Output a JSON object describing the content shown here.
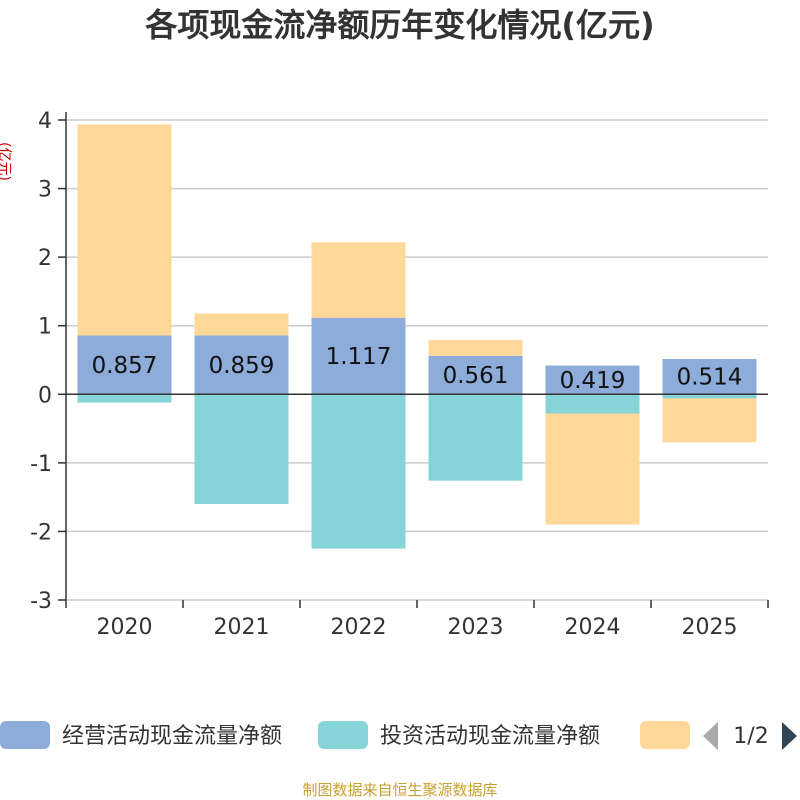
{
  "chart_data": {
    "type": "bar",
    "stacked": true,
    "title": "各项现金流净额历年变化情况(亿元)",
    "ylabel": "(亿元)",
    "xlabel": "",
    "ylim": [
      -3,
      4
    ],
    "yticks": [
      4,
      3,
      2,
      1,
      0,
      -1,
      -2,
      -3
    ],
    "categories": [
      "2020",
      "2021",
      "2022",
      "2023",
      "2024",
      "2025"
    ],
    "series": [
      {
        "name": "经营活动现金流量净额",
        "color": "#8eacd9",
        "values": [
          0.857,
          0.859,
          1.117,
          0.561,
          0.419,
          0.514
        ],
        "labels": [
          "0.857",
          "0.859",
          "1.117",
          "0.561",
          "0.419",
          "0.514"
        ]
      },
      {
        "name": "投资活动现金流量净额",
        "color": "#87d4d8",
        "values": [
          -0.12,
          -1.6,
          -2.25,
          -1.26,
          -0.28,
          -0.06
        ]
      },
      {
        "name": "",
        "color": "#fed899",
        "values": [
          3.08,
          0.32,
          1.1,
          0.23,
          -1.62,
          -0.64
        ]
      }
    ],
    "legend": {
      "page": "1/2"
    }
  },
  "source": "制图数据来自恒生聚源数据库"
}
